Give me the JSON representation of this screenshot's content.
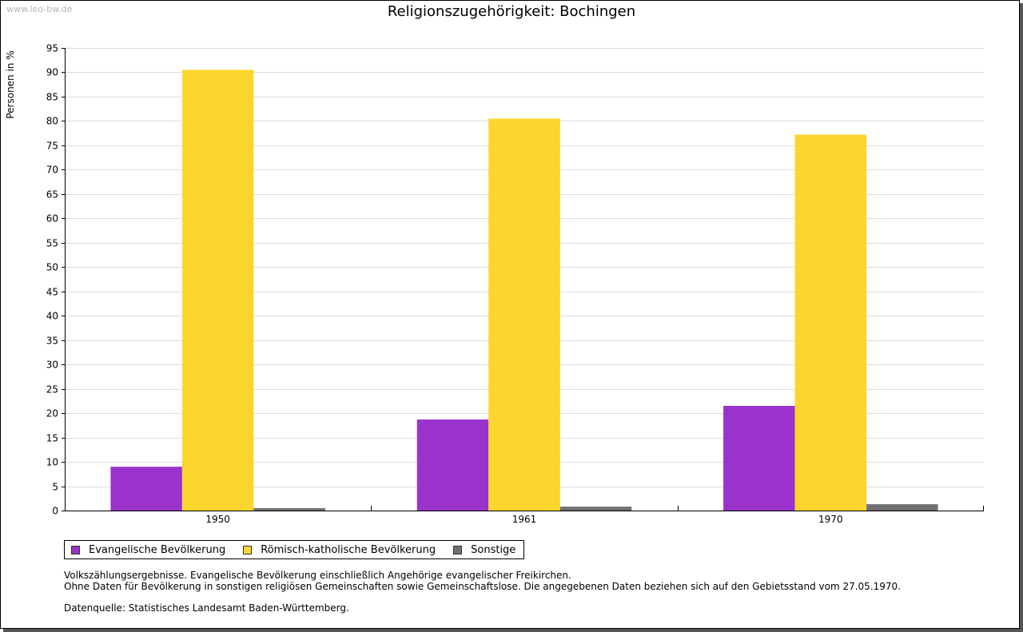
{
  "watermark": "www.leo-bw.de",
  "chart_data": {
    "type": "bar",
    "title": "Religionszugehörigkeit: Bochingen",
    "xlabel": "",
    "ylabel": "Personen in %",
    "ylim": [
      0,
      95
    ],
    "yticks": [
      0,
      5,
      10,
      15,
      20,
      25,
      30,
      35,
      40,
      45,
      50,
      55,
      60,
      65,
      70,
      75,
      80,
      85,
      90,
      95
    ],
    "categories": [
      "1950",
      "1961",
      "1970"
    ],
    "series": [
      {
        "name": "Evangelische Bevölkerung",
        "color": "#9933cc",
        "values": [
          9.0,
          18.7,
          21.5
        ]
      },
      {
        "name": "Römisch-katholische Bevölkerung",
        "color": "#fcd62d",
        "values": [
          90.5,
          80.5,
          77.2
        ]
      },
      {
        "name": "Sonstige",
        "color": "#707070",
        "values": [
          0.5,
          0.8,
          1.3
        ]
      }
    ],
    "grid": true,
    "legend": "bottom-left"
  },
  "notes": {
    "line1": "Volkszählungsergebnisse. Evangelische Bevölkerung einschließlich Angehörige evangelischer Freikirchen.",
    "line2": "Ohne Daten für Bevölkerung in sonstigen religiösen Gemeinschaften sowie Gemeinschaftslose. Die angegebenen Daten beziehen sich auf den Gebietsstand vom 27.05.1970.",
    "source": "Datenquelle: Statistisches Landesamt Baden-Württemberg."
  }
}
